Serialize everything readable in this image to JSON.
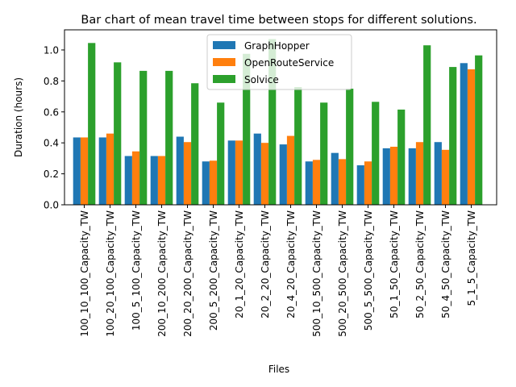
{
  "chart_data": {
    "type": "bar",
    "title": "Bar chart of mean travel time between stops for different solutions.",
    "xlabel": "Files",
    "ylabel": "Duration (hours)",
    "ylim": [
      0,
      1.13
    ],
    "yticks": [
      "0.0",
      "0.2",
      "0.4",
      "0.6",
      "0.8",
      "1.0"
    ],
    "legend_position": "top-center",
    "categories": [
      "100_10_100_Capacity_TW",
      "100_20_100_Capacity_TW",
      "100_5_100_Capacity_TW",
      "200_10_200_Capacity_TW",
      "200_20_200_Capacity_TW",
      "200_5_200_Capacity_TW",
      "20_1_20_Capacity_TW",
      "20_2_20_Capacity_TW",
      "20_4_20_Capacity_TW",
      "500_10_500_Capacity_TW",
      "500_20_500_Capacity_TW",
      "500_5_500_Capacity_TW",
      "50_1_50_Capacity_TW",
      "50_2_50_Capacity_TW",
      "50_4_50_Capacity_TW",
      "5_1_5_Capacity_TW"
    ],
    "series": [
      {
        "name": "GraphHopper",
        "color": "#1f77b4",
        "values": [
          0.435,
          0.435,
          0.315,
          0.315,
          0.44,
          0.28,
          0.415,
          0.46,
          0.39,
          0.28,
          0.335,
          0.255,
          0.365,
          0.365,
          0.405,
          0.915
        ]
      },
      {
        "name": "OpenRouteService",
        "color": "#ff7f0e",
        "values": [
          0.435,
          0.46,
          0.345,
          0.315,
          0.405,
          0.285,
          0.415,
          0.4,
          0.445,
          0.29,
          0.295,
          0.28,
          0.375,
          0.405,
          0.355,
          0.875
        ]
      },
      {
        "name": "Solvice",
        "color": "#2ca02c",
        "values": [
          1.045,
          0.92,
          0.865,
          0.865,
          0.785,
          0.66,
          0.975,
          1.07,
          0.76,
          0.66,
          0.75,
          0.665,
          0.615,
          1.03,
          0.89,
          0.965
        ]
      }
    ]
  }
}
